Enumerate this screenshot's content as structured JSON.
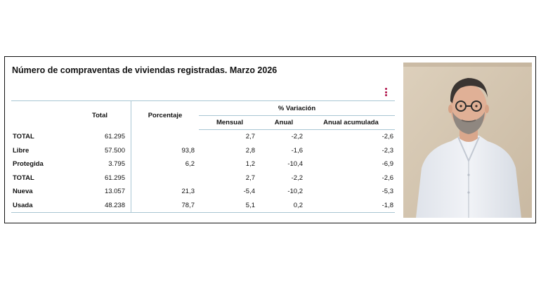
{
  "table": {
    "title": "Número de compraventas de viviendas registradas. Marzo 2026",
    "headers": {
      "total": "Total",
      "porcentaje": "Porcentaje",
      "variacion": "% Variación",
      "mensual": "Mensual",
      "anual": "Anual",
      "acumulada": "Anual acumulada"
    },
    "rows": [
      {
        "label": "TOTAL",
        "total": "61.295",
        "pct": "",
        "mensual": "2,7",
        "anual": "-2,2",
        "acumulada": "-2,6"
      },
      {
        "label": "Libre",
        "total": "57.500",
        "pct": "93,8",
        "mensual": "2,8",
        "anual": "-1,6",
        "acumulada": "-2,3"
      },
      {
        "label": "Protegida",
        "total": "3.795",
        "pct": "6,2",
        "mensual": "1,2",
        "anual": "-10,4",
        "acumulada": "-6,9"
      },
      {
        "label": "TOTAL",
        "total": "61.295",
        "pct": "",
        "mensual": "2,7",
        "anual": "-2,2",
        "acumulada": "-2,6"
      },
      {
        "label": "Nueva",
        "total": "13.057",
        "pct": "21,3",
        "mensual": "-5,4",
        "anual": "-10,2",
        "acumulada": "-5,3"
      },
      {
        "label": "Usada",
        "total": "48.238",
        "pct": "78,7",
        "mensual": "5,1",
        "anual": "0,2",
        "acumulada": "-1,8"
      }
    ],
    "menu_icon": "vertical-dots-icon",
    "accent_color": "#b0134a"
  },
  "photo": {
    "subject": "portrait-photo"
  }
}
